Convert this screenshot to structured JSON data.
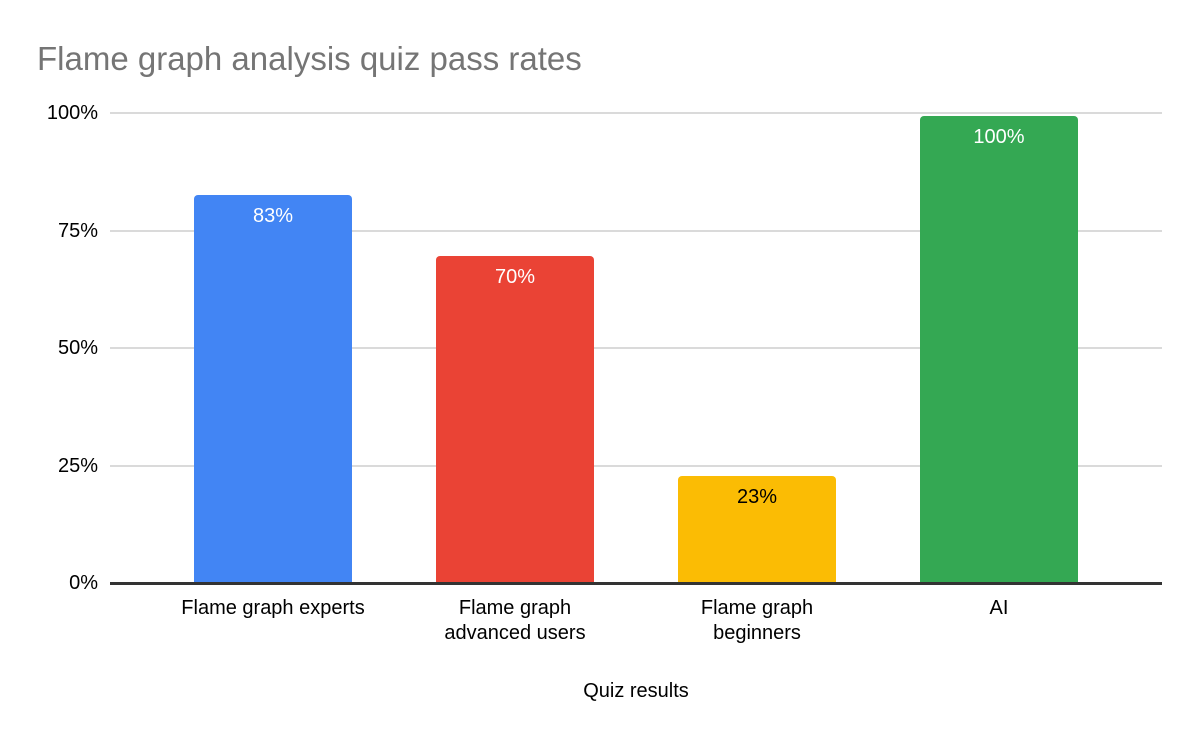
{
  "page": {
    "background": "#FFFFFF"
  },
  "chart_data": {
    "type": "bar",
    "title": "Flame graph analysis quiz pass rates",
    "xlabel": "Quiz results",
    "ylabel": "",
    "ylim": [
      0,
      100
    ],
    "grid": true,
    "legend": "none",
    "yticks": [
      {
        "value": 0,
        "label": "0%"
      },
      {
        "value": 25,
        "label": "25%"
      },
      {
        "value": 50,
        "label": "50%"
      },
      {
        "value": 75,
        "label": "75%"
      },
      {
        "value": 100,
        "label": "100%"
      }
    ],
    "categories": [
      "Flame graph experts",
      "Flame graph advanced users",
      "Flame graph beginners",
      "AI"
    ],
    "category_lines": [
      [
        "Flame graph experts"
      ],
      [
        "Flame graph",
        "advanced users"
      ],
      [
        "Flame graph",
        "beginners"
      ],
      [
        "AI"
      ]
    ],
    "values": [
      83,
      70,
      23,
      100
    ],
    "data_labels": [
      "83%",
      "70%",
      "23%",
      "100%"
    ],
    "bar_colors": [
      "#4285F4",
      "#EA4335",
      "#FBBC04",
      "#34A853"
    ],
    "data_label_colors": [
      "#FFFFFF",
      "#FFFFFF",
      "#000000",
      "#FFFFFF"
    ]
  },
  "colors": {
    "title_text": "#757575",
    "axis_text": "#000000",
    "gridline": "#DADADA",
    "baseline": "#333333",
    "background": "#FFFFFF"
  }
}
